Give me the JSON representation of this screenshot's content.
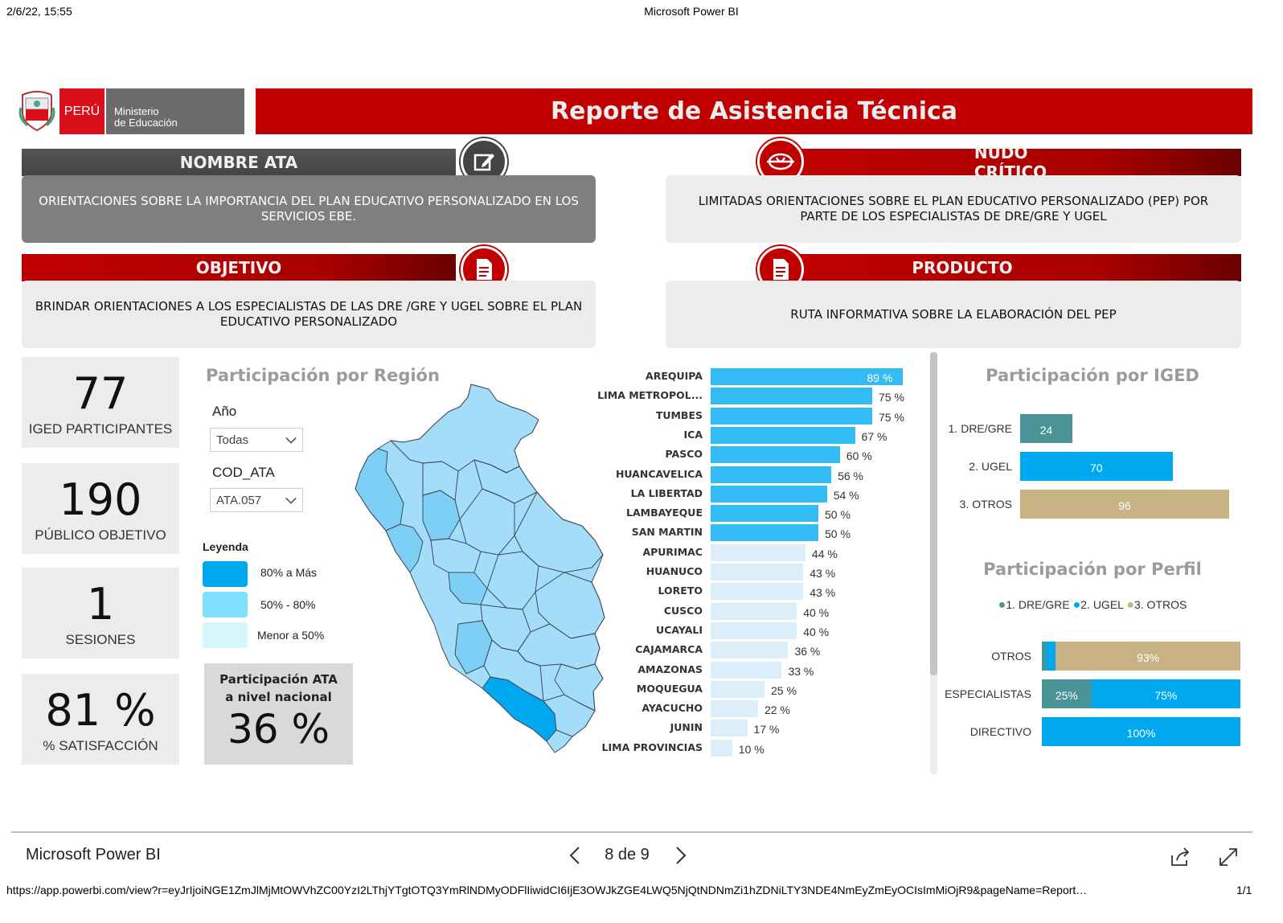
{
  "print_header": {
    "datetime": "2/6/22, 15:55",
    "title": "Microsoft Power BI"
  },
  "logo": {
    "country": "PERÚ",
    "ministry_line1": "Ministerio",
    "ministry_line2": "de Educación"
  },
  "report_title": "Reporte de Asistencia Técnica",
  "cards": {
    "nombre_ata": {
      "title": "NOMBRE ATA",
      "text": "ORIENTACIONES SOBRE LA IMPORTANCIA DEL PLAN EDUCATIVO PERSONALIZADO EN LOS SERVICIOS EBE.",
      "icon": "edit-icon"
    },
    "nudo_critico": {
      "title": "NUDO CRÍTICO",
      "text": "LIMITADAS ORIENTACIONES SOBRE EL PLAN EDUCATIVO PERSONALIZADO (PEP) POR PARTE DE LOS ESPECIALISTAS DE DRE/GRE Y UGEL",
      "icon": "knot-icon"
    },
    "objetivo": {
      "title": "OBJETIVO",
      "text": "BRINDAR ORIENTACIONES A LOS ESPECIALISTAS DE LAS DRE /GRE Y UGEL SOBRE EL PLAN EDUCATIVO PERSONALIZADO",
      "icon": "document-icon"
    },
    "producto": {
      "title": "PRODUCTO",
      "text": "RUTA INFORMATIVA SOBRE LA ELABORACIÓN DEL PEP",
      "icon": "document-icon"
    }
  },
  "kpis": [
    {
      "value": "77",
      "label": "IGED PARTICIPANTES"
    },
    {
      "value": "190",
      "label": "PÚBLICO OBJETIVO"
    },
    {
      "value": "1",
      "label": "SESIONES"
    },
    {
      "value": "81 %",
      "label": "% SATISFACCIÓN"
    }
  ],
  "region": {
    "title": "Participación por Región",
    "year_label": "Año",
    "year_value": "Todas",
    "ata_label": "COD_ATA",
    "ata_value": "ATA.057",
    "legend_title": "Leyenda",
    "legend": [
      {
        "label": "80% a Más",
        "color": "#00a8f0"
      },
      {
        "label": "50% - 80%",
        "color": "#7ee0fc"
      },
      {
        "label": "Menor a 50%",
        "color": "#d6f7fd"
      }
    ],
    "national_title_1": "Participación ATA",
    "national_title_2": "a nivel nacional",
    "national_value": "36 %"
  },
  "colors": {
    "high": "#33bbf5",
    "mid": "#33bbf5",
    "low": "#ddeefb",
    "dre": "#4a9396",
    "ugel": "#00a8f0",
    "otros": "#c8b283",
    "red": "#c00000"
  },
  "chart_data": [
    {
      "type": "bar",
      "orientation": "horizontal",
      "categories": [
        "AREQUIPA",
        "LIMA METROPOL...",
        "TUMBES",
        "ICA",
        "PASCO",
        "HUANCAVELICA",
        "LA LIBERTAD",
        "LAMBAYEQUE",
        "SAN MARTIN",
        "APURIMAC",
        "HUANUCO",
        "LORETO",
        "CUSCO",
        "UCAYALI",
        "CAJAMARCA",
        "AMAZONAS",
        "MOQUEGUA",
        "AYACUCHO",
        "JUNIN",
        "LIMA PROVINCIAS"
      ],
      "values": [
        89,
        75,
        75,
        67,
        60,
        56,
        54,
        50,
        50,
        44,
        43,
        43,
        40,
        40,
        36,
        33,
        25,
        22,
        17,
        10
      ],
      "labels": [
        "89 %",
        "75 %",
        "75 %",
        "67 %",
        "60 %",
        "56 %",
        "54 %",
        "50 %",
        "50 %",
        "44 %",
        "43 %",
        "43 %",
        "40 %",
        "40 %",
        "36 %",
        "33 %",
        "25 %",
        "22 %",
        "17 %",
        "10 %"
      ],
      "xlim": [
        0,
        100
      ]
    },
    {
      "type": "bar",
      "orientation": "horizontal",
      "title": "Participación por IGED",
      "categories": [
        "1. DRE/GRE",
        "2. UGEL",
        "3. OTROS"
      ],
      "values": [
        24,
        70,
        96
      ],
      "labels": [
        "24",
        "70",
        "96"
      ]
    },
    {
      "type": "bar",
      "orientation": "horizontal",
      "stacked": "percent",
      "title": "Participación por Perfil",
      "categories": [
        "OTROS",
        "ESPECIALISTAS",
        "DIRECTIVO"
      ],
      "series": [
        {
          "name": "1. DRE/GRE",
          "values": [
            2,
            25,
            0
          ],
          "labels": [
            "",
            "25%",
            ""
          ]
        },
        {
          "name": "2. UGEL",
          "values": [
            5,
            75,
            100
          ],
          "labels": [
            "",
            "75%",
            "100%"
          ]
        },
        {
          "name": "3. OTROS",
          "values": [
            93,
            0,
            0
          ],
          "labels": [
            "93%",
            "",
            ""
          ]
        }
      ],
      "legend_position": "top"
    }
  ],
  "footer": {
    "app_name": "Microsoft Power BI",
    "page": "8 de 9"
  },
  "print_footer": {
    "url": "https://app.powerbi.com/view?r=eyJrIjoiNGE1ZmJlMjMtOWVhZC00YzI2LThjYTgtOTQ3YmRlNDMyODFlIiwidCI6IjE3OWJkZGE4LWQ5NjQtNDNmZi1hZDNiLTY3NDE4NmEyZmEyOCIsImMiOjR9&pageName=Report…",
    "page": "1/1"
  }
}
